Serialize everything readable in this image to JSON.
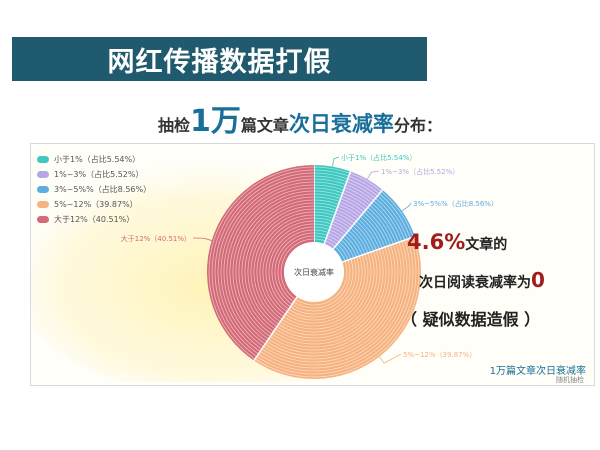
{
  "title": "网红传播数据打假",
  "subtitle": {
    "prefix": "抽检",
    "number": "1万",
    "middle": "篇文章",
    "emph": "次日衰减率",
    "suffix": "分布："
  },
  "chart_data": {
    "type": "pie",
    "center_label": "次日衰减率",
    "slices": [
      {
        "name": "小于1%",
        "label": "小于1%（占比5.54%）",
        "value": 5.54,
        "color": "#3ec8c1"
      },
      {
        "name": "1%~3%",
        "label": "1%~3%（占比5.52%）",
        "value": 5.52,
        "color": "#b7a6e6"
      },
      {
        "name": "3%~5%%",
        "label": "3%~5%%（占比8.56%）",
        "value": 8.56,
        "color": "#5daee0"
      },
      {
        "name": "5%~12%",
        "label": "5%~12%（39.87%）",
        "value": 39.87,
        "color": "#f6b27f"
      },
      {
        "name": "大于12%",
        "label": "大于12%（40.51%）",
        "value": 40.51,
        "color": "#d46a77"
      }
    ],
    "outer_labels": [
      "小于1%（占比5.54%）",
      "1%~3%（占比5.52%）",
      "3%~5%%（占比8.56%）",
      "5%~12%（39.87%）",
      "大于12%（40.51%）"
    ]
  },
  "highlight": {
    "pct": "4.6%",
    "line1_tail": "文章的",
    "line2": "次日阅读衰减率为",
    "zero": "0",
    "line3": "（ 疑似数据造假 ）"
  },
  "caption": "1万篇文章次日衰减率",
  "caption_sub": "随机抽检"
}
